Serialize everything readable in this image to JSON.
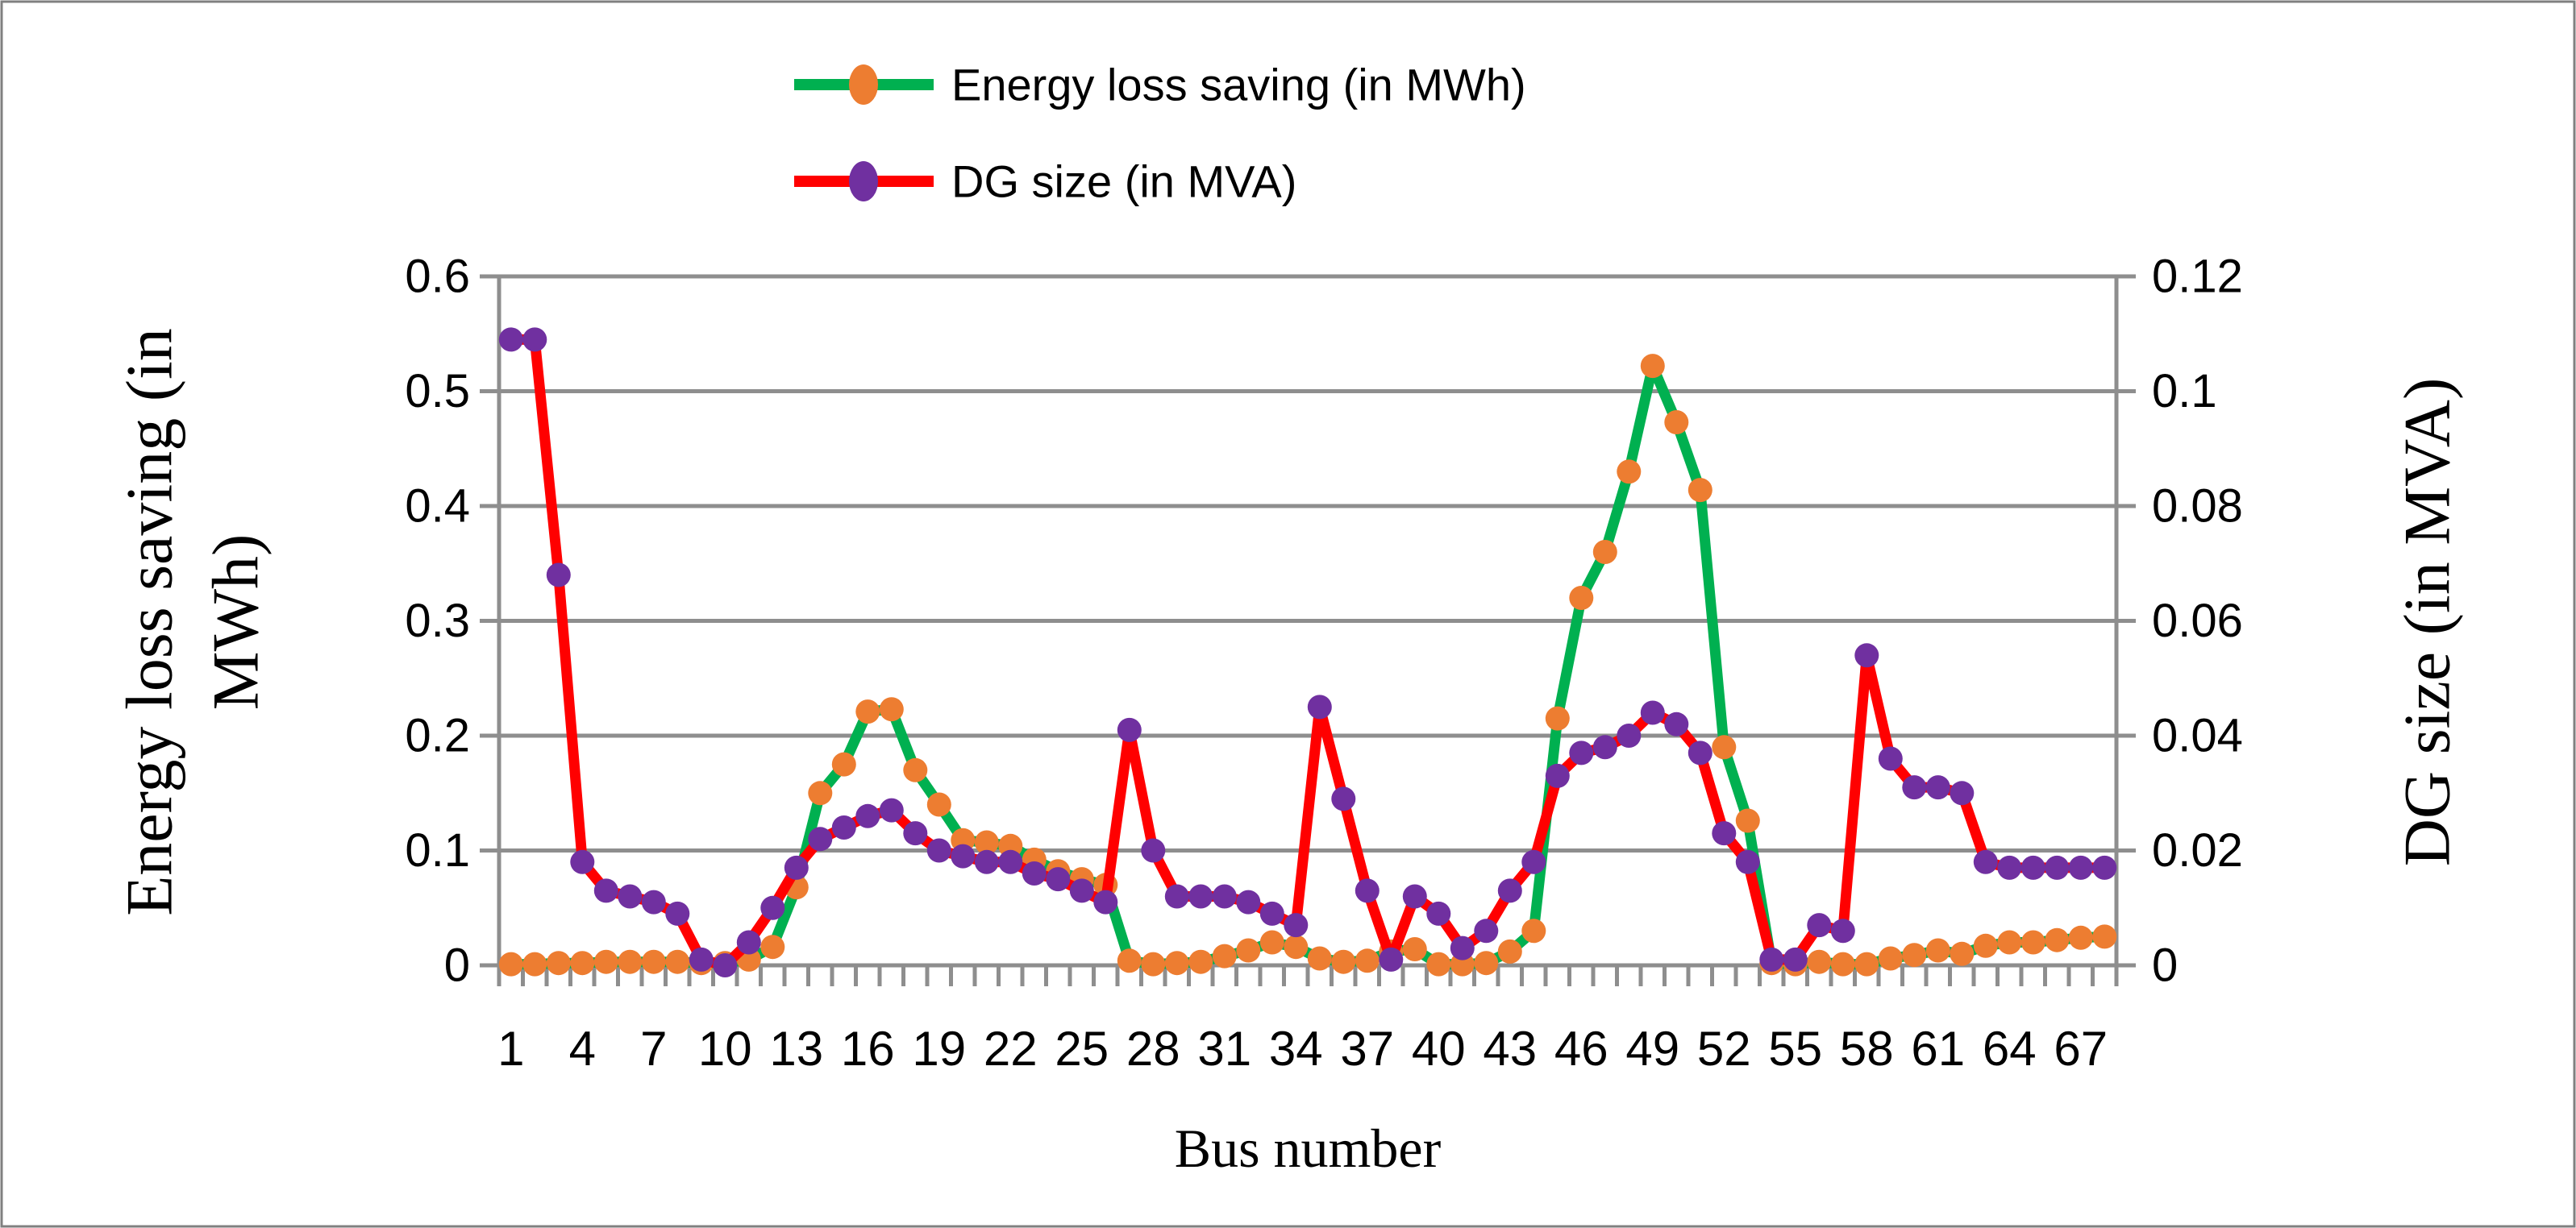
{
  "figure": {
    "background": "#ffffff",
    "border_color": "#808080"
  },
  "colors": {
    "grid": "#8E8E8E",
    "axis": "#8E8E8E",
    "text": "#000000",
    "energy_line": "#00B050",
    "energy_marker": "#ED7D31",
    "dg_line": "#FF0000",
    "dg_marker": "#7030A0"
  },
  "legend": {
    "items": [
      {
        "label": "Energy loss saving (in MWh)",
        "line_color": "#00B050",
        "marker_color": "#ED7D31"
      },
      {
        "label": "DG size (in MVA)",
        "line_color": "#FF0000",
        "marker_color": "#7030A0"
      }
    ]
  },
  "axes": {
    "x": {
      "title": "Bus number",
      "tick_labels": [
        "1",
        "4",
        "7",
        "10",
        "13",
        "16",
        "19",
        "22",
        "25",
        "28",
        "31",
        "34",
        "37",
        "40",
        "43",
        "46",
        "49",
        "52",
        "55",
        "58",
        "61",
        "64",
        "67"
      ],
      "label_interval": 3
    },
    "y_left": {
      "title_line1": "Energy loss saving (in",
      "title_line2": "MWh)",
      "ticks": [
        "0",
        "0.1",
        "0.2",
        "0.3",
        "0.4",
        "0.5",
        "0.6"
      ]
    },
    "y_right": {
      "title": "DG size (in MVA)",
      "ticks": [
        "0",
        "0.02",
        "0.04",
        "0.06",
        "0.08",
        "0.1",
        "0.12"
      ]
    }
  },
  "chart_data": {
    "type": "line",
    "xlabel": "Bus number",
    "ylabel_left": "Energy loss saving (in MWh)",
    "ylabel_right": "DG size (in MVA)",
    "ylim_left": [
      0,
      0.6
    ],
    "ylim_right": [
      0,
      0.12
    ],
    "grid": true,
    "legend_position": "top-center",
    "x": [
      1,
      2,
      3,
      4,
      5,
      6,
      7,
      8,
      9,
      10,
      11,
      12,
      13,
      14,
      15,
      16,
      17,
      18,
      19,
      20,
      21,
      22,
      23,
      24,
      25,
      26,
      27,
      28,
      29,
      30,
      31,
      32,
      33,
      34,
      35,
      36,
      37,
      38,
      39,
      40,
      41,
      42,
      43,
      44,
      45,
      46,
      47,
      48,
      49,
      50,
      51,
      52,
      53,
      54,
      55,
      56,
      57,
      58,
      59,
      60,
      61,
      62,
      63,
      64,
      65,
      66,
      67,
      68
    ],
    "series": [
      {
        "name": "Energy loss saving (in MWh)",
        "axis": "left",
        "line_color": "#00B050",
        "marker_color": "#ED7D31",
        "values": [
          0.001,
          0.001,
          0.002,
          0.002,
          0.003,
          0.003,
          0.003,
          0.003,
          0.002,
          0.002,
          0.005,
          0.016,
          0.068,
          0.15,
          0.175,
          0.221,
          0.223,
          0.17,
          0.14,
          0.109,
          0.107,
          0.104,
          0.092,
          0.082,
          0.075,
          0.07,
          0.004,
          0.001,
          0.002,
          0.003,
          0.008,
          0.013,
          0.02,
          0.016,
          0.006,
          0.003,
          0.004,
          0.012,
          0.014,
          0.001,
          0.001,
          0.002,
          0.012,
          0.03,
          0.215,
          0.32,
          0.36,
          0.43,
          0.522,
          0.473,
          0.414,
          0.19,
          0.126,
          0.002,
          0.001,
          0.003,
          0.001,
          0.001,
          0.006,
          0.009,
          0.013,
          0.01,
          0.017,
          0.02,
          0.02,
          0.022,
          0.024,
          0.025
        ]
      },
      {
        "name": "DG size (in MVA)",
        "axis": "right",
        "line_color": "#FF0000",
        "marker_color": "#7030A0",
        "values": [
          0.109,
          0.109,
          0.068,
          0.018,
          0.013,
          0.012,
          0.011,
          0.009,
          0.001,
          0.0,
          0.004,
          0.01,
          0.017,
          0.022,
          0.024,
          0.026,
          0.027,
          0.023,
          0.02,
          0.019,
          0.018,
          0.018,
          0.016,
          0.015,
          0.013,
          0.011,
          0.041,
          0.02,
          0.012,
          0.012,
          0.012,
          0.011,
          0.009,
          0.007,
          0.045,
          0.029,
          0.013,
          0.001,
          0.012,
          0.009,
          0.003,
          0.006,
          0.013,
          0.018,
          0.033,
          0.037,
          0.038,
          0.04,
          0.044,
          0.042,
          0.037,
          0.023,
          0.018,
          0.001,
          0.001,
          0.007,
          0.006,
          0.054,
          0.036,
          0.031,
          0.031,
          0.03,
          0.018,
          0.017,
          0.017,
          0.017,
          0.017,
          0.017
        ]
      }
    ]
  }
}
